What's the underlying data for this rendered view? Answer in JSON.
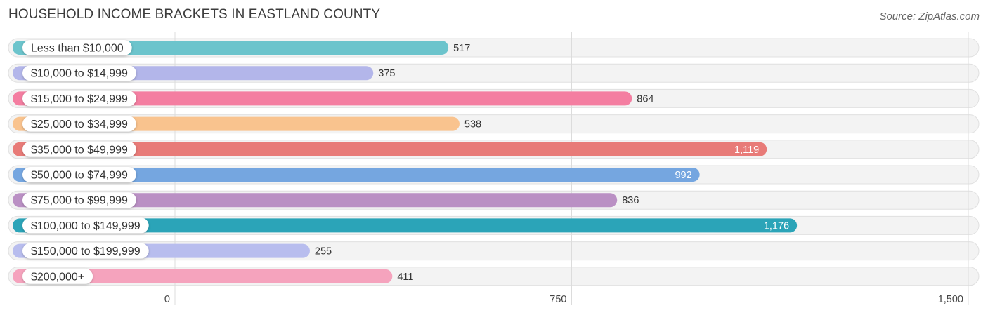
{
  "chart_data": {
    "type": "bar",
    "orientation": "horizontal",
    "title": "HOUSEHOLD INCOME BRACKETS IN EASTLAND COUNTY",
    "source": "Source: ZipAtlas.com",
    "categories": [
      "Less than $10,000",
      "$10,000 to $14,999",
      "$15,000 to $24,999",
      "$25,000 to $34,999",
      "$35,000 to $49,999",
      "$50,000 to $74,999",
      "$75,000 to $99,999",
      "$100,000 to $149,999",
      "$150,000 to $199,999",
      "$200,000+"
    ],
    "values": [
      517,
      375,
      864,
      538,
      1119,
      992,
      836,
      1176,
      255,
      411
    ],
    "value_labels": [
      "517",
      "375",
      "864",
      "538",
      "1,119",
      "992",
      "836",
      "1,176",
      "255",
      "411"
    ],
    "colors": [
      "#6cc4cc",
      "#b3b6ea",
      "#f47ea1",
      "#f9c38e",
      "#e87b78",
      "#75a6e0",
      "#ba90c4",
      "#2ba4b8",
      "#b8bdee",
      "#f5a3bd"
    ],
    "xlim": [
      0,
      1500
    ],
    "ticks": [
      0,
      750,
      1500
    ],
    "tick_labels": [
      "0",
      "750",
      "1,500"
    ],
    "grid": true,
    "legend": "none"
  }
}
